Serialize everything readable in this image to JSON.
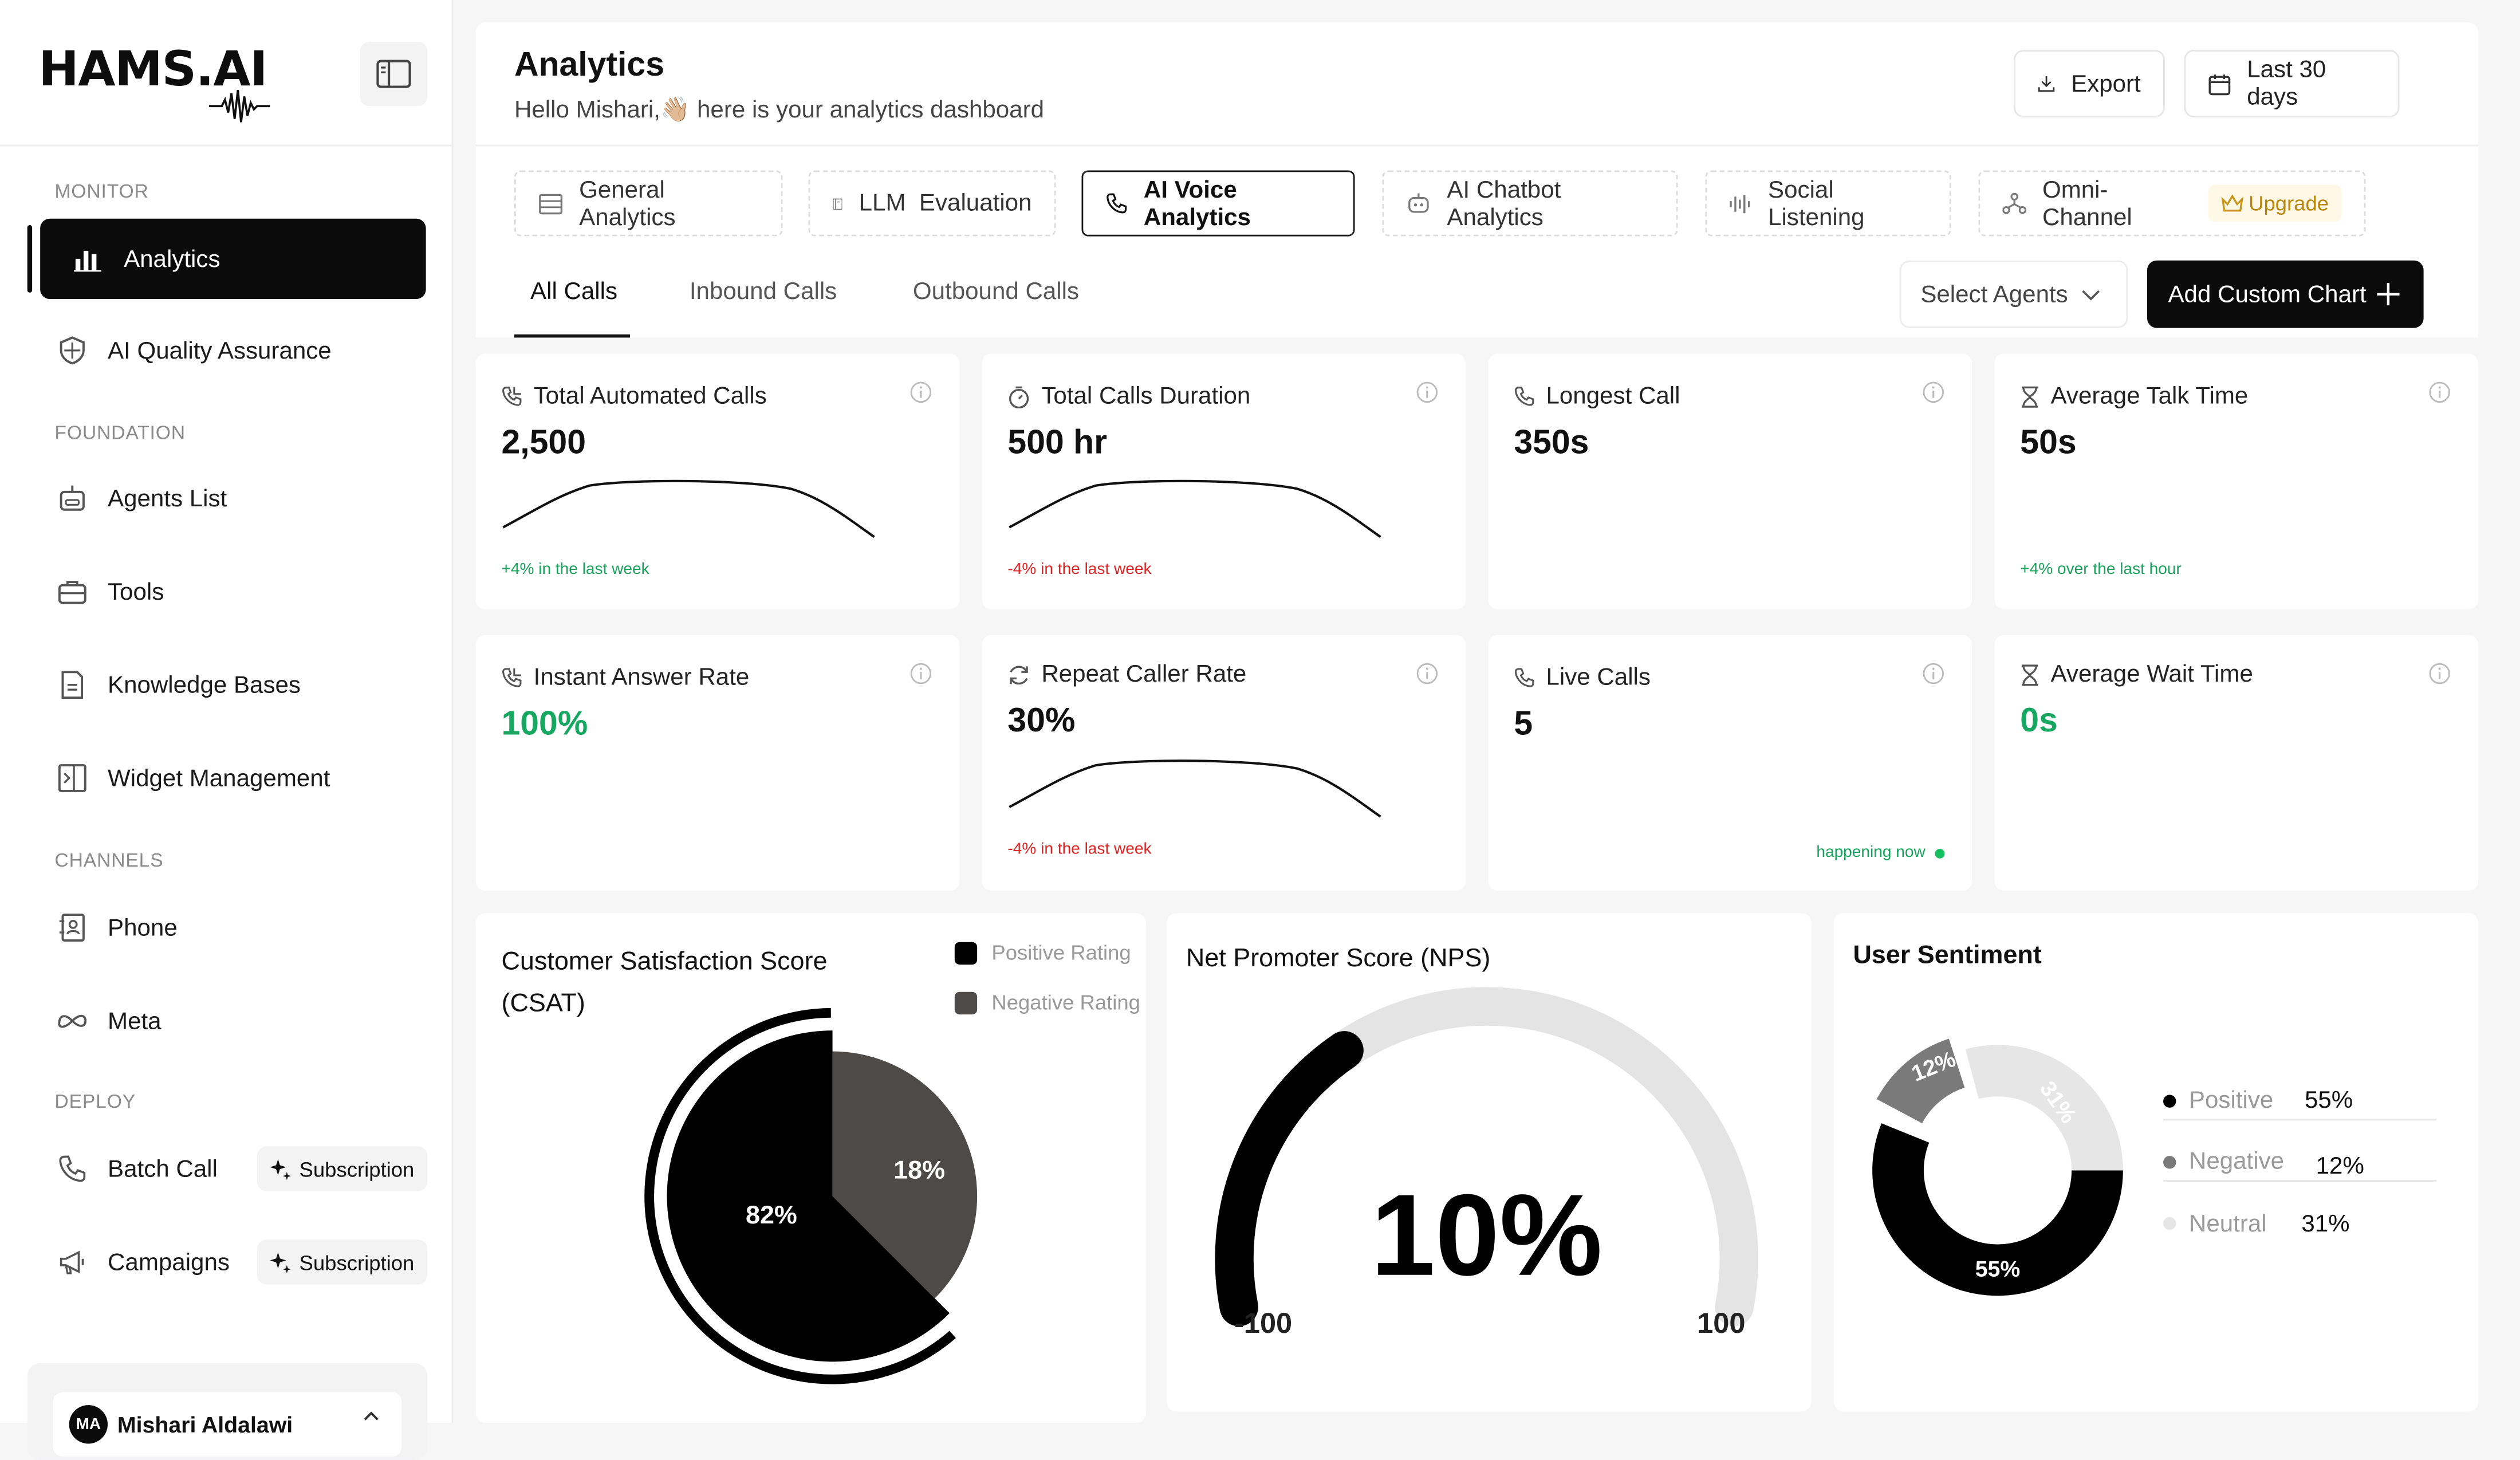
{
  "app": {
    "logo": "HAMS.AI"
  },
  "sidebar": {
    "sections": {
      "monitor": "MONITOR",
      "foundation": "FOUNDATION",
      "channels": "CHANNELS",
      "deploy": "DEPLOY"
    },
    "items": [
      {
        "label": "Analytics",
        "icon": "bar-chart-icon"
      },
      {
        "label": "AI Quality Assurance",
        "icon": "shield-icon"
      },
      {
        "label": "Agents List",
        "icon": "robot-icon"
      },
      {
        "label": "Tools",
        "icon": "briefcase-icon"
      },
      {
        "label": "Knowledge Bases",
        "icon": "document-icon"
      },
      {
        "label": "Widget Management",
        "icon": "widget-icon"
      },
      {
        "label": "Phone",
        "icon": "contact-book-icon"
      },
      {
        "label": "Meta",
        "icon": "meta-icon"
      },
      {
        "label": "Batch Call",
        "icon": "phone-icon",
        "badge": "Subscription"
      },
      {
        "label": "Campaigns",
        "icon": "megaphone-icon",
        "badge": "Subscription"
      }
    ],
    "user": {
      "initials": "MA",
      "name": "Mishari Aldalawi"
    }
  },
  "header": {
    "title": "Analytics",
    "subtitle": "Hello Mishari,👋🏼 here is your analytics dashboard",
    "export_label": "Export",
    "date_range_label": "Last 30 days"
  },
  "tabs": [
    {
      "label": "General Analytics"
    },
    {
      "label": "LLM  Evaluation"
    },
    {
      "label": "AI Voice Analytics"
    },
    {
      "label": "AI Chatbot Analytics"
    },
    {
      "label": "Social Listening"
    },
    {
      "label": "Omni-Channel",
      "badge": "Upgrade"
    }
  ],
  "subtabs": [
    {
      "label": "All Calls"
    },
    {
      "label": "Inbound Calls"
    },
    {
      "label": "Outbound Calls"
    }
  ],
  "controls": {
    "select_agents": "Select Agents",
    "add_chart": "Add Custom Chart"
  },
  "stats": [
    {
      "title": "Total Automated Calls",
      "value": "2,500",
      "delta": "+4% in the last week"
    },
    {
      "title": "Total Calls Duration",
      "value": "500 hr",
      "delta": "-4% in the last week"
    },
    {
      "title": "Longest Call",
      "value": "350s"
    },
    {
      "title": "Average Talk Time",
      "value": "50s",
      "delta": "+4% over the last hour"
    },
    {
      "title": "Instant Answer Rate",
      "value": "100%"
    },
    {
      "title": "Repeat Caller Rate",
      "value": "30%",
      "delta": "-4% in the last week"
    },
    {
      "title": "Live Calls",
      "value": "5",
      "note": "happening now"
    },
    {
      "title": "Average Wait Time",
      "value": "0s"
    }
  ],
  "csat": {
    "title_line1": "Customer Satisfaction Score",
    "title_line2": "(CSAT)",
    "legend_positive": "Positive Rating",
    "legend_negative": "Negative Rating",
    "positive_label": "82%",
    "negative_label": "18%"
  },
  "nps": {
    "title": "Net Promoter Score (NPS)",
    "value_label": "10%",
    "min_label": "-100",
    "max_label": "100"
  },
  "sentiment": {
    "title": "User Sentiment",
    "rows": [
      {
        "label": "Positive",
        "value": "55%"
      },
      {
        "label": "Negative",
        "value": "12%"
      },
      {
        "label": "Neutral",
        "value": "31%"
      }
    ]
  },
  "chart_data": [
    {
      "type": "pie",
      "categories": [
        "Positive Rating",
        "Negative Rating"
      ],
      "values": [
        82,
        18
      ],
      "colors": [
        "#000000",
        "#4d4a47"
      ]
    },
    {
      "type": "gauge",
      "value": 10,
      "range": [
        -100,
        100
      ]
    },
    {
      "type": "pie",
      "categories": [
        "Positive",
        "Negative",
        "Neutral"
      ],
      "values": [
        55,
        12,
        31
      ],
      "colors": [
        "#000000",
        "#7a7a7a",
        "#e6e6e6"
      ]
    }
  ]
}
